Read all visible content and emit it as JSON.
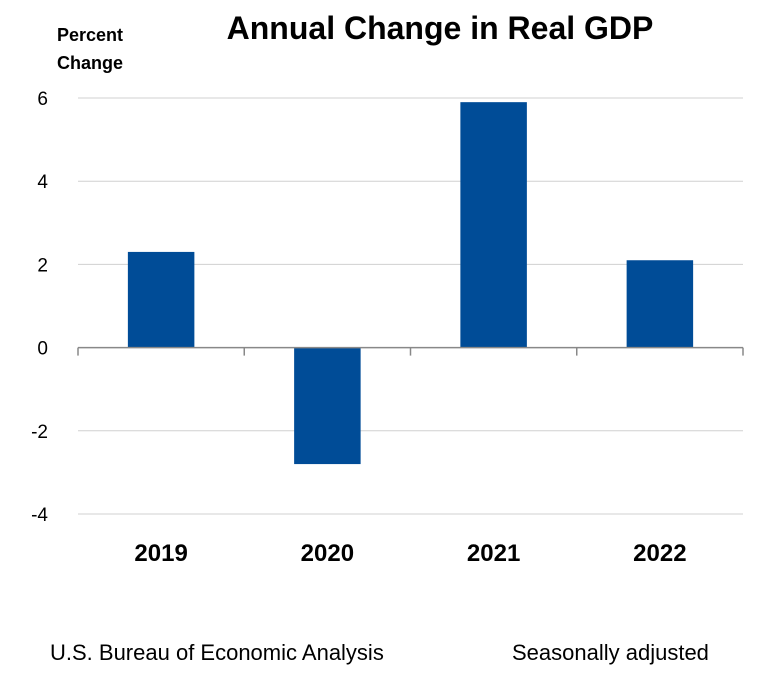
{
  "chart_data": {
    "type": "bar",
    "title": "Annual Change in Real GDP",
    "ylabel": "Percent Change",
    "xlabel": "",
    "categories": [
      "2019",
      "2020",
      "2021",
      "2022"
    ],
    "values": [
      2.3,
      -2.8,
      5.9,
      2.1
    ],
    "ylim": [
      -4,
      6
    ],
    "yticks": [
      -4,
      -2,
      0,
      2,
      4,
      6
    ],
    "grid": true,
    "bar_color": "#004C97",
    "legend": "none"
  },
  "footer": {
    "source": "U.S. Bureau of Economic Analysis",
    "note": "Seasonally adjusted"
  }
}
